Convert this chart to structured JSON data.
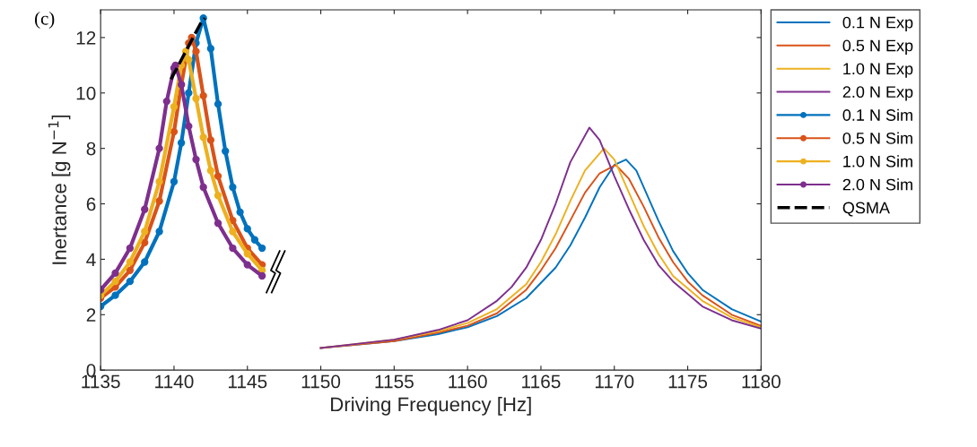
{
  "chart_data": {
    "type": "line",
    "xlabel": "Driving Frequency [Hz]",
    "ylabel": "Inertance [g N$^{−1}$]",
    "annotations": [
      "(c)"
    ],
    "xlim": [
      1135,
      1180
    ],
    "xticks": [
      1135,
      1140,
      1145,
      1150,
      1155,
      1160,
      1165,
      1170,
      1175,
      1180
    ],
    "ylim": [
      0,
      13
    ],
    "yticks": [
      0,
      2,
      4,
      6,
      8,
      10,
      12
    ],
    "grid": false,
    "legend": "right",
    "series": [
      {
        "name": "0.1 N Exp",
        "color": "#0072bd",
        "marker": "none",
        "x": [
          1150,
          1155,
          1158,
          1160,
          1162,
          1164,
          1166,
          1167,
          1168,
          1169,
          1170,
          1170.8,
          1171.5,
          1172,
          1173,
          1174,
          1175,
          1176,
          1178,
          1180
        ],
        "values": [
          0.8,
          1.05,
          1.3,
          1.55,
          1.95,
          2.6,
          3.7,
          4.5,
          5.5,
          6.6,
          7.4,
          7.6,
          7.2,
          6.6,
          5.4,
          4.3,
          3.5,
          2.9,
          2.2,
          1.75
        ]
      },
      {
        "name": "0.5 N Exp",
        "color": "#d95319",
        "marker": "none",
        "x": [
          1150,
          1155,
          1158,
          1160,
          1162,
          1164,
          1165,
          1166,
          1167,
          1168,
          1169,
          1170.1,
          1171,
          1172,
          1173,
          1174,
          1175,
          1176,
          1178,
          1180
        ],
        "values": [
          0.8,
          1.05,
          1.35,
          1.6,
          2.05,
          2.9,
          3.6,
          4.4,
          5.4,
          6.4,
          7.1,
          7.4,
          6.9,
          5.9,
          4.8,
          3.9,
          3.2,
          2.7,
          2.0,
          1.6
        ]
      },
      {
        "name": "1.0 N Exp",
        "color": "#edb120",
        "marker": "none",
        "x": [
          1150,
          1155,
          1158,
          1160,
          1162,
          1164,
          1165,
          1166,
          1167,
          1168,
          1169.3,
          1170,
          1171,
          1172,
          1173,
          1174,
          1176,
          1178,
          1180
        ],
        "values": [
          0.8,
          1.1,
          1.4,
          1.7,
          2.2,
          3.1,
          3.9,
          4.9,
          6.1,
          7.2,
          8.0,
          7.6,
          6.4,
          5.2,
          4.2,
          3.4,
          2.5,
          1.9,
          1.55
        ]
      },
      {
        "name": "2.0 N Exp",
        "color": "#7e2f8e",
        "marker": "none",
        "x": [
          1150,
          1155,
          1158,
          1160,
          1162,
          1163,
          1164,
          1165,
          1166,
          1167,
          1168.3,
          1169,
          1170,
          1171,
          1172,
          1173,
          1174,
          1176,
          1178,
          1180
        ],
        "values": [
          0.8,
          1.1,
          1.45,
          1.8,
          2.5,
          3.0,
          3.7,
          4.7,
          6.0,
          7.5,
          8.75,
          8.3,
          7.0,
          5.8,
          4.7,
          3.8,
          3.2,
          2.3,
          1.8,
          1.5
        ]
      },
      {
        "name": "0.1 N Sim",
        "color": "#0072bd",
        "marker": "circle",
        "x": [
          1135,
          1136,
          1137,
          1138,
          1139,
          1140,
          1140.5,
          1141,
          1141.5,
          1142,
          1142.5,
          1143,
          1143.5,
          1144,
          1144.5,
          1145,
          1145.5,
          1146
        ],
        "values": [
          2.3,
          2.7,
          3.2,
          3.9,
          5.0,
          6.8,
          8.2,
          10.0,
          11.8,
          12.7,
          11.6,
          9.6,
          7.9,
          6.6,
          5.7,
          5.1,
          4.7,
          4.4
        ]
      },
      {
        "name": "0.5 N Sim",
        "color": "#d95319",
        "marker": "circle",
        "x": [
          1135,
          1136,
          1137,
          1138,
          1139,
          1140,
          1140.5,
          1141,
          1141.2,
          1141.5,
          1142,
          1142.5,
          1143,
          1144,
          1145,
          1146
        ],
        "values": [
          2.6,
          3.0,
          3.6,
          4.6,
          6.1,
          8.6,
          10.3,
          11.8,
          12.0,
          11.5,
          9.9,
          8.3,
          7.0,
          5.4,
          4.4,
          3.8
        ]
      },
      {
        "name": "1.0 N Sim",
        "color": "#edb120",
        "marker": "circle",
        "x": [
          1135,
          1136,
          1137,
          1138,
          1139,
          1140,
          1140.5,
          1140.8,
          1141,
          1141.5,
          1142,
          1142.5,
          1143,
          1144,
          1145,
          1146
        ],
        "values": [
          2.7,
          3.2,
          3.9,
          5.0,
          6.8,
          9.5,
          11.0,
          11.5,
          11.2,
          9.8,
          8.4,
          7.2,
          6.3,
          5.0,
          4.2,
          3.6
        ]
      },
      {
        "name": "2.0 N Sim",
        "color": "#7e2f8e",
        "marker": "circle",
        "x": [
          1135,
          1136,
          1137,
          1138,
          1139,
          1139.5,
          1140,
          1140.1,
          1140.5,
          1141,
          1141.5,
          1142,
          1143,
          1144,
          1145,
          1146
        ],
        "values": [
          2.9,
          3.5,
          4.4,
          5.8,
          8.0,
          9.7,
          10.9,
          11.0,
          10.3,
          8.8,
          7.6,
          6.6,
          5.3,
          4.4,
          3.8,
          3.4
        ]
      },
      {
        "name": "QSMA",
        "color": "#000000",
        "marker": "none",
        "line_style": "dashed",
        "x": [
          1139.8,
          1140.3,
          1140.8,
          1141.3,
          1141.8,
          1142.1
        ],
        "values": [
          10.5,
          11.0,
          11.5,
          12.0,
          12.5,
          12.7
        ]
      }
    ]
  }
}
